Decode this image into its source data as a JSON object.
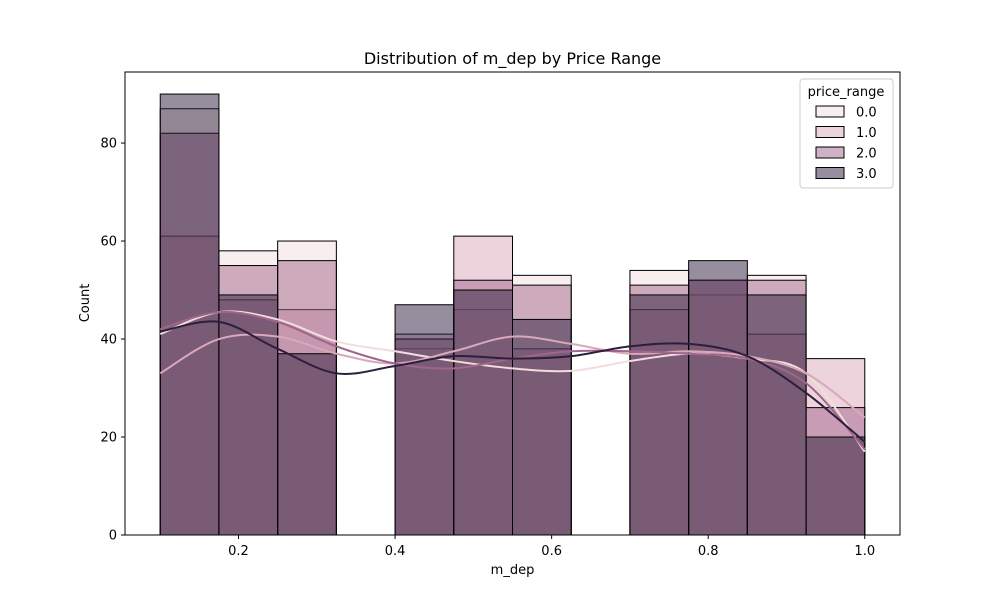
{
  "chart_data": {
    "type": "histogram",
    "title": "Distribution of m_dep by Price Range",
    "xlabel": "m_dep",
    "ylabel": "Count",
    "xlim": [
      0.055,
      1.045
    ],
    "ylim": [
      0,
      94.5
    ],
    "x_ticks": [
      0.2,
      0.4,
      0.6,
      0.8,
      1.0
    ],
    "y_ticks": [
      0,
      20,
      40,
      60,
      80
    ],
    "grid": false,
    "legend": {
      "title": "price_range",
      "position": "top-right"
    },
    "bin_edges": [
      0.1,
      0.175,
      0.25,
      0.325,
      0.4,
      0.475,
      0.55,
      0.625,
      0.7,
      0.775,
      0.85,
      0.925,
      1.0
    ],
    "series": [
      {
        "name": "0.0",
        "color": "#f1dedc",
        "values": [
          87,
          58,
          60,
          0,
          38,
          46,
          53,
          0,
          54,
          49,
          53,
          20
        ],
        "kde": [
          41,
          45.5,
          44,
          39.5,
          37.5,
          35.5,
          34,
          33.5,
          35.5,
          37,
          36,
          33,
          17
        ]
      },
      {
        "name": "1.0",
        "color": "#d9a8b9",
        "values": [
          61,
          48,
          46,
          0,
          41,
          61,
          38,
          0,
          46,
          52,
          41,
          36
        ],
        "kde": [
          33,
          40,
          40.5,
          37,
          35,
          37.5,
          40.5,
          39,
          37,
          37.5,
          36.5,
          33,
          24
        ]
      },
      {
        "name": "2.0",
        "color": "#a1658c",
        "values": [
          82,
          55,
          56,
          0,
          40,
          52,
          51,
          0,
          51,
          52,
          52,
          26
        ],
        "kde": [
          42,
          45.5,
          43.5,
          38.5,
          35,
          34,
          36,
          37.5,
          37.5,
          37,
          36,
          31,
          17.5
        ]
      },
      {
        "name": "3.0",
        "color": "#2d1e3e",
        "values": [
          90,
          49,
          37,
          0,
          47,
          50,
          44,
          0,
          49,
          56,
          49,
          20
        ],
        "kde": [
          41.5,
          43.5,
          38,
          33,
          34.5,
          36.5,
          36,
          36.5,
          38.5,
          39,
          36.5,
          29,
          19
        ]
      }
    ]
  }
}
